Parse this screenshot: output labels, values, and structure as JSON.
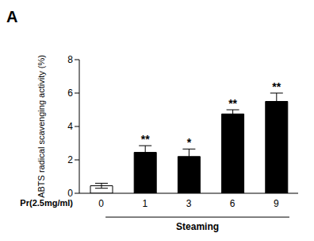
{
  "chart_data": {
    "type": "bar",
    "panel_label": "A",
    "y_label": "ABTS radical scavenging activity (%)",
    "x_label": "Pr(2.5mg/ml)",
    "group_label": "Steaming",
    "categories": [
      "0",
      "1",
      "3",
      "6",
      "9"
    ],
    "values": [
      0.45,
      2.45,
      2.2,
      4.75,
      5.5
    ],
    "errors": [
      0.15,
      0.4,
      0.45,
      0.25,
      0.5
    ],
    "significance": [
      null,
      "**",
      "*",
      "**",
      "**"
    ],
    "colors": [
      "#ffffff",
      "#000000",
      "#000000",
      "#000000",
      "#000000"
    ],
    "ylim": [
      0,
      8
    ],
    "yticks": [
      0,
      2,
      4,
      6,
      8
    ],
    "grid": false
  }
}
